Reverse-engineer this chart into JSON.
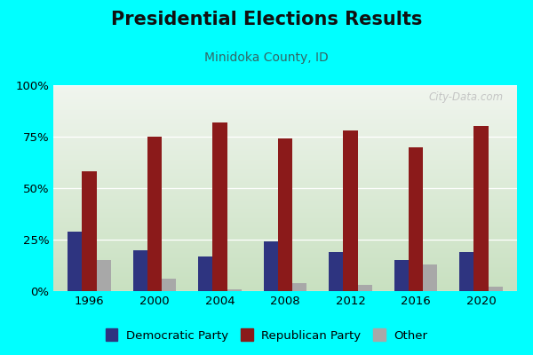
{
  "title": "Presidential Elections Results",
  "subtitle": "Minidoka County, ID",
  "years": [
    1996,
    2000,
    2004,
    2008,
    2012,
    2016,
    2020
  ],
  "democratic": [
    29,
    20,
    17,
    24,
    19,
    15,
    19
  ],
  "republican": [
    58,
    75,
    82,
    74,
    78,
    70,
    80
  ],
  "other": [
    15,
    6,
    1,
    4,
    3,
    13,
    2
  ],
  "dem_color": "#2e3480",
  "rep_color": "#8b1a1a",
  "other_color": "#a8a8a8",
  "background_color": "#00ffff",
  "plot_bg_top": "#f0f5ee",
  "plot_bg_bottom": "#c8e0c0",
  "ylim": [
    0,
    100
  ],
  "yticks": [
    0,
    25,
    50,
    75,
    100
  ],
  "ytick_labels": [
    "0%",
    "25%",
    "50%",
    "75%",
    "100%"
  ],
  "bar_width": 0.22,
  "title_fontsize": 15,
  "subtitle_fontsize": 10,
  "watermark": "City-Data.com",
  "legend_labels": [
    "Democratic Party",
    "Republican Party",
    "Other"
  ]
}
